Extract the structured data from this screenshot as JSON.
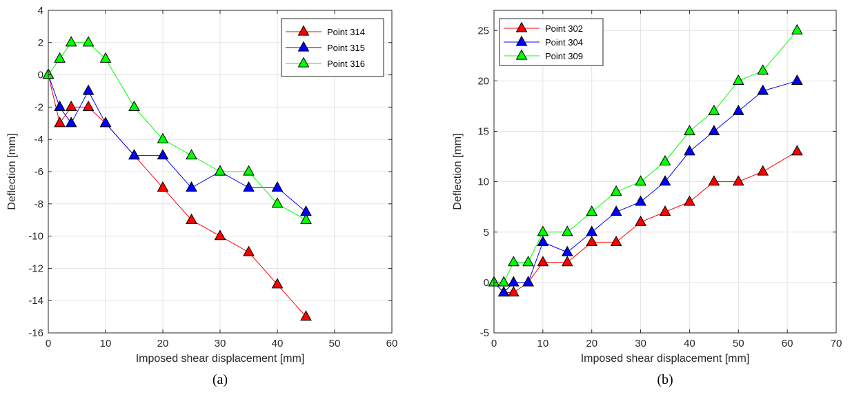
{
  "chart_data": [
    {
      "type": "line",
      "caption": "(a)",
      "xlabel": "Imposed shear displacement [mm]",
      "ylabel": "Deflection [mm]",
      "xlim": [
        0,
        60
      ],
      "ylim": [
        -16,
        4
      ],
      "xticks": [
        0,
        10,
        20,
        30,
        40,
        50,
        60
      ],
      "yticks": [
        -16,
        -14,
        -12,
        -10,
        -8,
        -6,
        -4,
        -2,
        0,
        2,
        4
      ],
      "grid": true,
      "legend_position": "top-right",
      "marker": "triangle",
      "series": [
        {
          "name": "Point 314",
          "color": "#ff0000",
          "x": [
            0,
            2,
            4,
            7,
            10,
            15,
            20,
            25,
            30,
            35,
            40,
            45
          ],
          "y": [
            0,
            -3,
            -2,
            -2,
            -3,
            -5,
            -7,
            -9,
            -10,
            -11,
            -13,
            -15
          ]
        },
        {
          "name": "Point 315",
          "color": "#0000ff",
          "x": [
            0,
            2,
            4,
            7,
            10,
            15,
            20,
            25,
            30,
            35,
            40,
            45
          ],
          "y": [
            0,
            -2,
            -3,
            -1,
            -3,
            -5,
            -5,
            -7,
            -6,
            -7,
            -7,
            -8.5
          ]
        },
        {
          "name": "Point 316",
          "color": "#00ff00",
          "x": [
            0,
            2,
            4,
            7,
            10,
            15,
            20,
            25,
            30,
            35,
            40,
            45
          ],
          "y": [
            0,
            1,
            2,
            2,
            1,
            -2,
            -4,
            -5,
            -6,
            -6,
            -8,
            -9
          ]
        }
      ]
    },
    {
      "type": "line",
      "caption": "(b)",
      "xlabel": "Imposed shear displacement [mm]",
      "ylabel": "Deflection [mm]",
      "xlim": [
        0,
        70
      ],
      "ylim": [
        -5,
        27
      ],
      "xticks": [
        0,
        10,
        20,
        30,
        40,
        50,
        60,
        70
      ],
      "yticks": [
        -5,
        0,
        5,
        10,
        15,
        20,
        25
      ],
      "grid": true,
      "legend_position": "top-left",
      "marker": "triangle",
      "series": [
        {
          "name": "Point 302",
          "color": "#ff0000",
          "x": [
            0,
            2,
            4,
            7,
            10,
            15,
            20,
            25,
            30,
            35,
            40,
            45,
            50,
            55,
            62
          ],
          "y": [
            0,
            -1,
            -1,
            0,
            2,
            2,
            4,
            4,
            6,
            7,
            8,
            10,
            10,
            11,
            13
          ]
        },
        {
          "name": "Point 304",
          "color": "#0000ff",
          "x": [
            0,
            2,
            4,
            7,
            10,
            15,
            20,
            25,
            30,
            35,
            40,
            45,
            50,
            55,
            62
          ],
          "y": [
            0,
            -1,
            0,
            0,
            4,
            3,
            5,
            7,
            8,
            10,
            13,
            15,
            17,
            19,
            20
          ]
        },
        {
          "name": "Point 309",
          "color": "#00ff00",
          "x": [
            0,
            2,
            4,
            7,
            10,
            15,
            20,
            25,
            30,
            35,
            40,
            45,
            50,
            55,
            62
          ],
          "y": [
            0,
            0,
            2,
            2,
            5,
            5,
            7,
            9,
            10,
            12,
            15,
            17,
            20,
            21,
            25
          ]
        }
      ]
    }
  ]
}
